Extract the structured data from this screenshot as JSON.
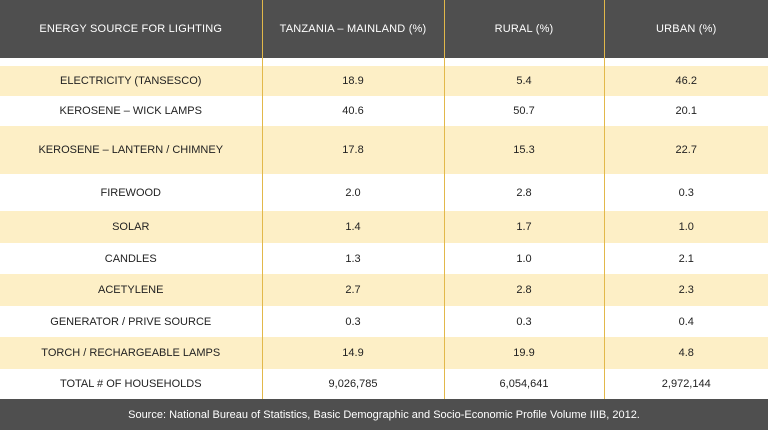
{
  "table": {
    "headers": [
      "ENERGY SOURCE FOR LIGHTING",
      "TANZANIA – MAINLAND (%)",
      "RURAL (%)",
      "URBAN (%)"
    ],
    "rows": [
      [
        "ELECTRICITY (TANSESCO)",
        "18.9",
        "5.4",
        "46.2"
      ],
      [
        "KEROSENE – WICK LAMPS",
        "40.6",
        "50.7",
        "20.1"
      ],
      [
        "KEROSENE – LANTERN / CHIMNEY",
        "17.8",
        "15.3",
        "22.7"
      ],
      [
        "FIREWOOD",
        "2.0",
        "2.8",
        "0.3"
      ],
      [
        "SOLAR",
        "1.4",
        "1.7",
        "1.0"
      ],
      [
        "CANDLES",
        "1.3",
        "1.0",
        "2.1"
      ],
      [
        "ACETYLENE",
        "2.7",
        "2.8",
        "2.3"
      ],
      [
        "GENERATOR / PRIVE SOURCE",
        "0.3",
        "0.3",
        "0.4"
      ],
      [
        "TORCH / RECHARGEABLE LAMPS",
        "14.9",
        "19.9",
        "4.8"
      ],
      [
        "TOTAL # OF  HOUSEHOLDS",
        "9,026,785",
        "6,054,641",
        "2,972,144"
      ]
    ]
  },
  "colors": {
    "header_bg": "#4f4f4f",
    "shaded_row_bg": "#fdefc6",
    "divider": "#e2b84a"
  },
  "footer": {
    "source": "Source: National Bureau of Statistics, Basic Demographic and Socio-Economic Profile Volume IIIB, 2012."
  }
}
